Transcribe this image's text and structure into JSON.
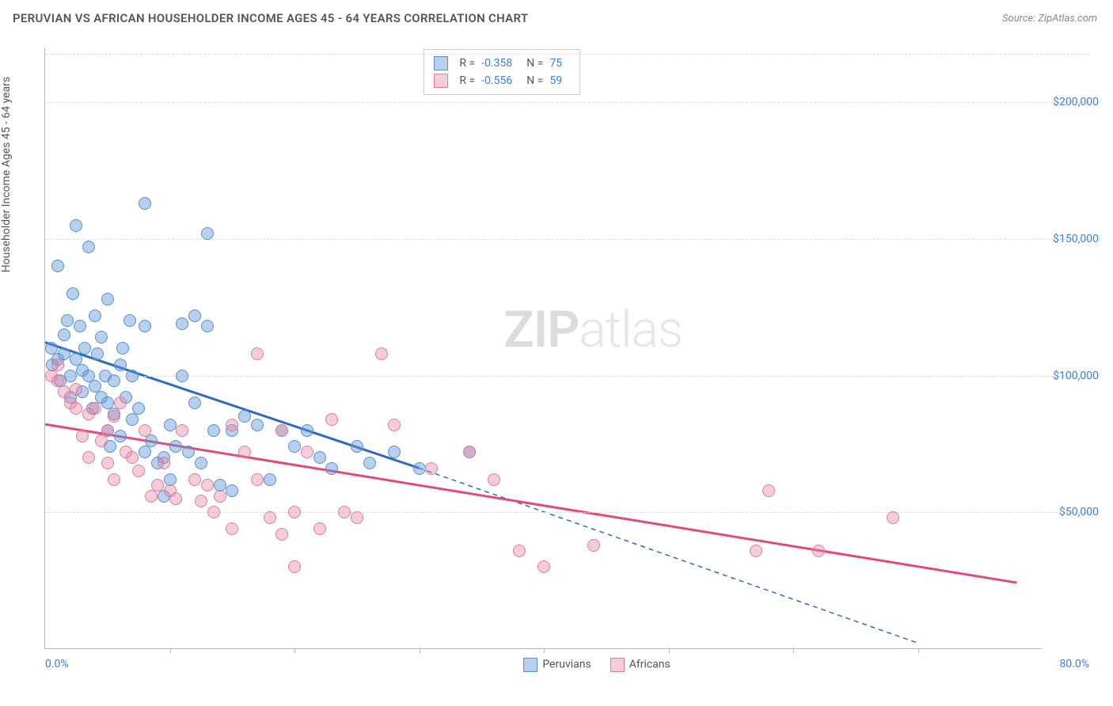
{
  "header": {
    "title": "PERUVIAN VS AFRICAN HOUSEHOLDER INCOME AGES 45 - 64 YEARS CORRELATION CHART",
    "source": "Source: ZipAtlas.com"
  },
  "watermark": {
    "zip": "ZIP",
    "atlas": "atlas"
  },
  "chart": {
    "type": "scatter",
    "ylabel": "Householder Income Ages 45 - 64 years",
    "xlim": [
      0,
      80
    ],
    "ylim": [
      0,
      220000
    ],
    "xaxis_label_min": "0.0%",
    "xaxis_label_max": "80.0%",
    "ytick_step": 50000,
    "yticks": [
      50000,
      100000,
      150000,
      200000
    ],
    "ytick_labels": [
      "$50,000",
      "$100,000",
      "$150,000",
      "$200,000"
    ],
    "xtick_positions_pct": [
      10,
      20,
      30,
      40,
      50,
      60,
      70
    ],
    "background_color": "#ffffff",
    "grid_color": "#dddddd",
    "axis_color": "#bbbbbb",
    "tick_label_color": "#3b82d6",
    "label_color": "#555555",
    "point_radius": 8,
    "series": [
      {
        "name": "Peruvians",
        "color_fill": "rgba(96,150,214,0.45)",
        "color_stroke": "#5a8fd0",
        "trend_color": "#2f6bbd",
        "trend_width": 3,
        "R": "-0.358",
        "N": "75",
        "trend": {
          "x1": 0,
          "y1": 112000,
          "x2": 30,
          "y2": 66000,
          "ext_x2": 70,
          "ext_y2": 2000,
          "extend_dashed": true
        },
        "points": [
          [
            0.5,
            110000
          ],
          [
            0.6,
            104000
          ],
          [
            1,
            140000
          ],
          [
            1,
            106000
          ],
          [
            1.2,
            98000
          ],
          [
            1.5,
            115000
          ],
          [
            1.5,
            108000
          ],
          [
            1.8,
            120000
          ],
          [
            2,
            100000
          ],
          [
            2,
            92000
          ],
          [
            2.2,
            130000
          ],
          [
            2.5,
            155000
          ],
          [
            2.5,
            106000
          ],
          [
            2.8,
            118000
          ],
          [
            3,
            102000
          ],
          [
            3,
            94000
          ],
          [
            3.2,
            110000
          ],
          [
            3.5,
            147000
          ],
          [
            3.5,
            100000
          ],
          [
            3.8,
            88000
          ],
          [
            4,
            122000
          ],
          [
            4,
            96000
          ],
          [
            4.2,
            108000
          ],
          [
            4.5,
            92000
          ],
          [
            4.5,
            114000
          ],
          [
            4.8,
            100000
          ],
          [
            5,
            128000
          ],
          [
            5,
            90000
          ],
          [
            5.2,
            74000
          ],
          [
            5.5,
            98000
          ],
          [
            5.5,
            86000
          ],
          [
            5,
            80000
          ],
          [
            6,
            104000
          ],
          [
            6,
            78000
          ],
          [
            6.2,
            110000
          ],
          [
            6.5,
            92000
          ],
          [
            6.8,
            120000
          ],
          [
            7,
            84000
          ],
          [
            7,
            100000
          ],
          [
            7.5,
            88000
          ],
          [
            8,
            163000
          ],
          [
            8,
            118000
          ],
          [
            8,
            72000
          ],
          [
            8.5,
            76000
          ],
          [
            9,
            68000
          ],
          [
            9.5,
            70000
          ],
          [
            9.5,
            56000
          ],
          [
            10,
            82000
          ],
          [
            10,
            62000
          ],
          [
            10.5,
            74000
          ],
          [
            11,
            119000
          ],
          [
            11,
            100000
          ],
          [
            11.5,
            72000
          ],
          [
            12,
            122000
          ],
          [
            12,
            90000
          ],
          [
            12.5,
            68000
          ],
          [
            13,
            152000
          ],
          [
            13,
            118000
          ],
          [
            13.5,
            80000
          ],
          [
            14,
            60000
          ],
          [
            15,
            58000
          ],
          [
            15,
            80000
          ],
          [
            16,
            85000
          ],
          [
            17,
            82000
          ],
          [
            18,
            62000
          ],
          [
            19,
            80000
          ],
          [
            20,
            74000
          ],
          [
            21,
            80000
          ],
          [
            22,
            70000
          ],
          [
            23,
            66000
          ],
          [
            25,
            74000
          ],
          [
            26,
            68000
          ],
          [
            28,
            72000
          ],
          [
            30,
            66000
          ],
          [
            34,
            72000
          ]
        ]
      },
      {
        "name": "Africans",
        "color_fill": "rgba(231,130,160,0.40)",
        "color_stroke": "#e07ba0",
        "trend_color": "#e14b7a",
        "trend_width": 3,
        "R": "-0.556",
        "N": "59",
        "trend": {
          "x1": 0,
          "y1": 82000,
          "x2": 78,
          "y2": 24000,
          "extend_dashed": false
        },
        "points": [
          [
            0.5,
            100000
          ],
          [
            1,
            98000
          ],
          [
            1,
            104000
          ],
          [
            1.5,
            94000
          ],
          [
            2,
            90000
          ],
          [
            2.5,
            88000
          ],
          [
            2.5,
            95000
          ],
          [
            3,
            78000
          ],
          [
            3.5,
            86000
          ],
          [
            3.5,
            70000
          ],
          [
            4,
            88000
          ],
          [
            4.5,
            76000
          ],
          [
            5,
            80000
          ],
          [
            5,
            68000
          ],
          [
            5.5,
            85000
          ],
          [
            5.5,
            62000
          ],
          [
            6,
            90000
          ],
          [
            6.5,
            72000
          ],
          [
            7,
            70000
          ],
          [
            7.5,
            65000
          ],
          [
            8,
            80000
          ],
          [
            8.5,
            56000
          ],
          [
            9,
            60000
          ],
          [
            9.5,
            68000
          ],
          [
            10,
            58000
          ],
          [
            10.5,
            55000
          ],
          [
            11,
            80000
          ],
          [
            12,
            62000
          ],
          [
            12.5,
            54000
          ],
          [
            13,
            60000
          ],
          [
            13.5,
            50000
          ],
          [
            14,
            56000
          ],
          [
            15,
            82000
          ],
          [
            15,
            44000
          ],
          [
            16,
            72000
          ],
          [
            17,
            108000
          ],
          [
            17,
            62000
          ],
          [
            18,
            48000
          ],
          [
            19,
            80000
          ],
          [
            19,
            42000
          ],
          [
            20,
            50000
          ],
          [
            20,
            30000
          ],
          [
            21,
            72000
          ],
          [
            22,
            44000
          ],
          [
            23,
            84000
          ],
          [
            24,
            50000
          ],
          [
            25,
            48000
          ],
          [
            27,
            108000
          ],
          [
            28,
            82000
          ],
          [
            31,
            66000
          ],
          [
            34,
            72000
          ],
          [
            36,
            62000
          ],
          [
            38,
            36000
          ],
          [
            40,
            30000
          ],
          [
            44,
            38000
          ],
          [
            57,
            36000
          ],
          [
            58,
            58000
          ],
          [
            62,
            36000
          ],
          [
            68,
            48000
          ]
        ]
      }
    ],
    "legend_top": {
      "r_label": "R =",
      "n_label": "N ="
    },
    "legend_bottom": {}
  }
}
